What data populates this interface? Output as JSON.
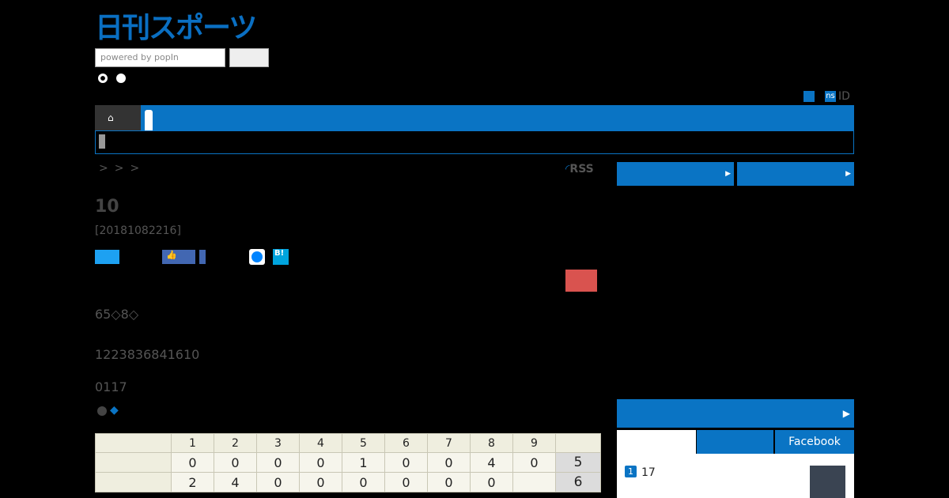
{
  "header": {
    "logo": "日刊スポーツ",
    "search_placeholder": "powered by popIn",
    "account_badge": "ns",
    "account_label": "ID"
  },
  "breadcrumb": [
    ">",
    ">",
    ">"
  ],
  "rss": "RSS",
  "article": {
    "title": "10",
    "date": "[20181082216]",
    "hatena": "B!",
    "paragraphs": [
      "65◇8◇",
      "1223836841610",
      "0117"
    ],
    "marker": "◆"
  },
  "scoreboard": {
    "innings": [
      1,
      2,
      3,
      4,
      5,
      6,
      7,
      8,
      9
    ],
    "rows": [
      [
        0,
        0,
        0,
        0,
        1,
        0,
        0,
        4,
        0
      ],
      [
        2,
        4,
        0,
        0,
        0,
        0,
        0,
        0,
        null
      ]
    ],
    "totals": [
      5,
      6
    ]
  },
  "sidebar": {
    "tabs": [
      "Facebook"
    ],
    "ranking": [
      {
        "rank": "1",
        "text": "17"
      }
    ]
  }
}
